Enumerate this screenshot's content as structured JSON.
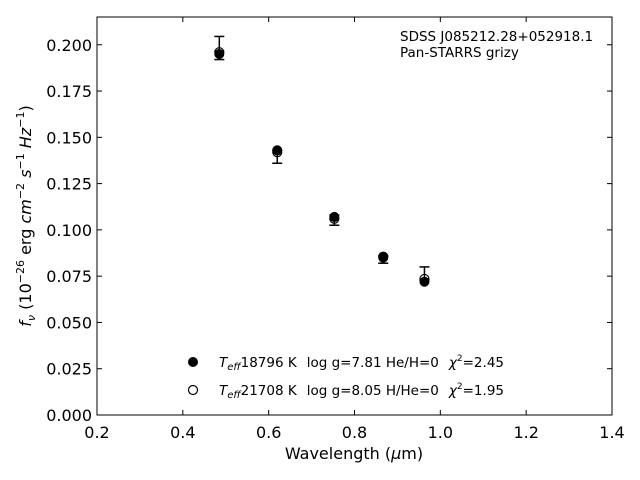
{
  "chart_data": {
    "type": "scatter",
    "title": "",
    "annotation_lines": [
      "SDSS J085212.28+052918.1",
      "Pan-STARRS grizy"
    ],
    "xlabel": "Wavelength (μm)",
    "ylabel": "fν (10⁻²⁶ erg cm⁻² s⁻¹ Hz⁻¹)",
    "xlim": [
      0.2,
      1.4
    ],
    "ylim": [
      0.0,
      0.215
    ],
    "x_ticks": [
      0.2,
      0.4,
      0.6,
      0.8,
      1.0,
      1.2,
      1.4
    ],
    "x_tick_labels": [
      "0.2",
      "0.4",
      "0.6",
      "0.8",
      "1.0",
      "1.2",
      "1.4"
    ],
    "y_ticks": [
      0.0,
      0.025,
      0.05,
      0.075,
      0.1,
      0.125,
      0.15,
      0.175,
      0.2
    ],
    "y_tick_labels": [
      "0.000",
      "0.025",
      "0.050",
      "0.075",
      "0.100",
      "0.125",
      "0.150",
      "0.175",
      "0.200"
    ],
    "grid": false,
    "legend_position": "lower-center",
    "observed": {
      "x": [
        0.485,
        0.62,
        0.753,
        0.867,
        0.963
      ],
      "y": [
        0.196,
        0.141,
        0.106,
        0.085,
        0.0745
      ],
      "yerr_low": [
        0.004,
        0.005,
        0.0035,
        0.003,
        0.0015
      ],
      "yerr_high": [
        0.0085,
        0.002,
        0.002,
        0.001,
        0.0055
      ]
    },
    "series": [
      {
        "name": "Teff= 18796 K  log g=7.81  He/H=0  χ²=2.45",
        "marker": "filled",
        "x": [
          0.485,
          0.62,
          0.753,
          0.867,
          0.963
        ],
        "y": [
          0.195,
          0.143,
          0.107,
          0.085,
          0.072
        ]
      },
      {
        "name": "Teff= 21708 K  log g=8.05  H/He=0  χ²=1.95",
        "marker": "open",
        "x": [
          0.485,
          0.62,
          0.753,
          0.867,
          0.963
        ],
        "y": [
          0.196,
          0.142,
          0.106,
          0.0855,
          0.0735
        ]
      }
    ],
    "legend": [
      {
        "teff": "18796 K",
        "rest": "log g=7.81  He/H=0",
        "chi2": "=2.45"
      },
      {
        "teff": "21708 K",
        "rest": "log g=8.05  H/He=0",
        "chi2": "=1.95"
      }
    ],
    "colors": {
      "marker": "#000000",
      "axis": "#000000",
      "background": "#ffffff"
    }
  }
}
